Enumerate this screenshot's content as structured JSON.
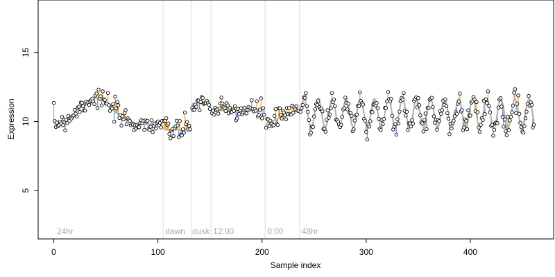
{
  "chart_data": {
    "type": "scatter",
    "title": "",
    "xlabel": "Sample index",
    "ylabel": "Expression",
    "xlim": [
      -15,
      480
    ],
    "ylim": [
      1.5,
      18.8
    ],
    "x_ticks": [
      0,
      100,
      200,
      300,
      400
    ],
    "y_ticks": [
      5,
      10,
      15
    ],
    "grid": false,
    "phase_boundaries": [
      105,
      132,
      151,
      203,
      236
    ],
    "phase_labels": [
      {
        "x": 3,
        "text": "24hr"
      },
      {
        "x": 107,
        "text": "dawn"
      },
      {
        "x": 133,
        "text": "dusk"
      },
      {
        "x": 153,
        "text": "12:00"
      },
      {
        "x": 205,
        "text": "0:00"
      },
      {
        "x": 238,
        "text": "48hr"
      }
    ],
    "colors": {
      "fit_line": "#b4b4b4",
      "residual_positive": "#f4a428",
      "residual_negative": "#6d95e0",
      "vline": "#dcdcdc",
      "point_fill": "#ffffff",
      "point_stroke": "#000000"
    },
    "series": [
      {
        "segments": [
          {
            "x_start": 0,
            "x_end": 104,
            "kind": "bump",
            "base": 9.8,
            "amp": 1.9,
            "center": 40,
            "width": 22
          },
          {
            "x_start": 106,
            "x_end": 131,
            "kind": "flat",
            "level": 9.4
          },
          {
            "x_start": 133,
            "x_end": 150,
            "kind": "flat",
            "level": 11.3
          },
          {
            "x_start": 152,
            "x_end": 202,
            "kind": "flat",
            "level": 10.8
          },
          {
            "x_start": 204,
            "x_end": 235,
            "kind": "ramp",
            "start": 9.8,
            "end": 10.9
          },
          {
            "x_start": 237,
            "x_end": 461,
            "kind": "osc",
            "base": 10.6,
            "amp": 1.05,
            "period": 13.5
          }
        ],
        "noise_sd": 0.38,
        "step": 1
      }
    ]
  }
}
